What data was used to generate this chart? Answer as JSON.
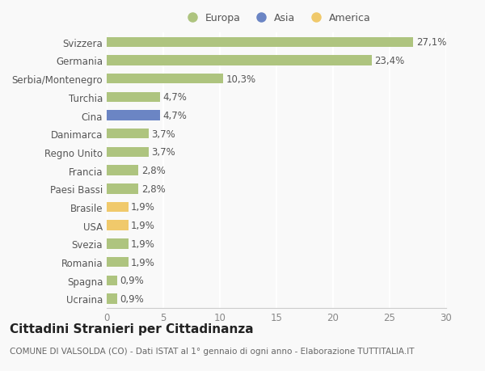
{
  "countries": [
    "Svizzera",
    "Germania",
    "Serbia/Montenegro",
    "Turchia",
    "Cina",
    "Danimarca",
    "Regno Unito",
    "Francia",
    "Paesi Bassi",
    "Brasile",
    "USA",
    "Svezia",
    "Romania",
    "Spagna",
    "Ucraina"
  ],
  "values": [
    27.1,
    23.4,
    10.3,
    4.7,
    4.7,
    3.7,
    3.7,
    2.8,
    2.8,
    1.9,
    1.9,
    1.9,
    1.9,
    0.9,
    0.9
  ],
  "labels": [
    "27,1%",
    "23,4%",
    "10,3%",
    "4,7%",
    "4,7%",
    "3,7%",
    "3,7%",
    "2,8%",
    "2,8%",
    "1,9%",
    "1,9%",
    "1,9%",
    "1,9%",
    "0,9%",
    "0,9%"
  ],
  "colors": [
    "#aec47f",
    "#aec47f",
    "#aec47f",
    "#aec47f",
    "#6b85c4",
    "#aec47f",
    "#aec47f",
    "#aec47f",
    "#aec47f",
    "#f0c96b",
    "#f0c96b",
    "#aec47f",
    "#aec47f",
    "#aec47f",
    "#aec47f"
  ],
  "legend_labels": [
    "Europa",
    "Asia",
    "America"
  ],
  "legend_colors": [
    "#aec47f",
    "#6b85c4",
    "#f0c96b"
  ],
  "title": "Cittadini Stranieri per Cittadinanza",
  "subtitle": "COMUNE DI VALSOLDA (CO) - Dati ISTAT al 1° gennaio di ogni anno - Elaborazione TUTTITALIA.IT",
  "xlim": [
    0,
    30
  ],
  "xticks": [
    0,
    5,
    10,
    15,
    20,
    25,
    30
  ],
  "background_color": "#f9f9f9",
  "grid_color": "#ffffff",
  "bar_height": 0.55,
  "label_fontsize": 8.5,
  "tick_fontsize": 8.5,
  "title_fontsize": 11,
  "subtitle_fontsize": 7.5
}
